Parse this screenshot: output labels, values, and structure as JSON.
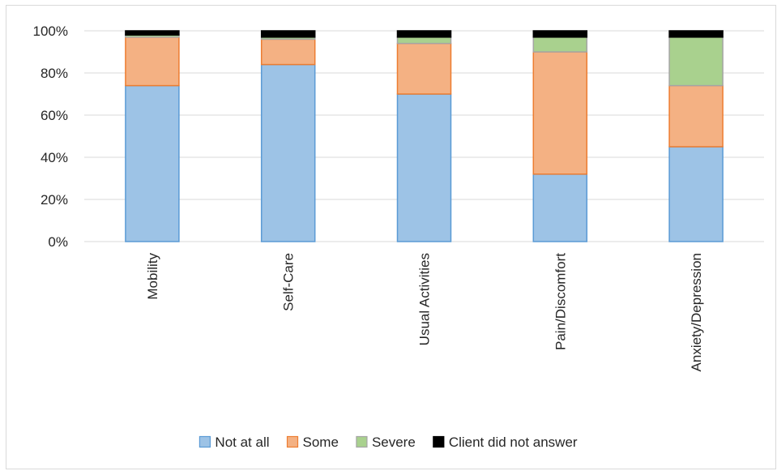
{
  "chart_data": {
    "type": "bar",
    "stacked": true,
    "percent_stacked": true,
    "categories": [
      "Mobility",
      "Self-Care",
      "Usual Activities",
      "Pain/Discomfort",
      "Anxiety/Depression"
    ],
    "series": [
      {
        "name": "Not at all",
        "values": [
          74,
          84,
          70,
          32,
          45
        ],
        "color": "#9dc3e6",
        "edge": "#5b9bd5"
      },
      {
        "name": "Some",
        "values": [
          23,
          12,
          24,
          58,
          29
        ],
        "color": "#f4b183",
        "edge": "#ed7d31"
      },
      {
        "name": "Severe",
        "values": [
          1,
          1,
          3,
          7,
          23
        ],
        "color": "#a9d18e",
        "edge": "#a5a5a5"
      },
      {
        "name": "Client did not answer",
        "values": [
          2,
          3,
          3,
          3,
          3
        ],
        "color": "#000000",
        "edge": "#000000"
      }
    ],
    "title": "",
    "xlabel": "",
    "ylabel": "",
    "ylim": [
      0,
      100
    ],
    "ytick_values": [
      0,
      20,
      40,
      60,
      80,
      100
    ],
    "ytick_labels": [
      "0%",
      "20%",
      "40%",
      "60%",
      "80%",
      "100%"
    ],
    "grid": true,
    "legend_position": "bottom"
  }
}
